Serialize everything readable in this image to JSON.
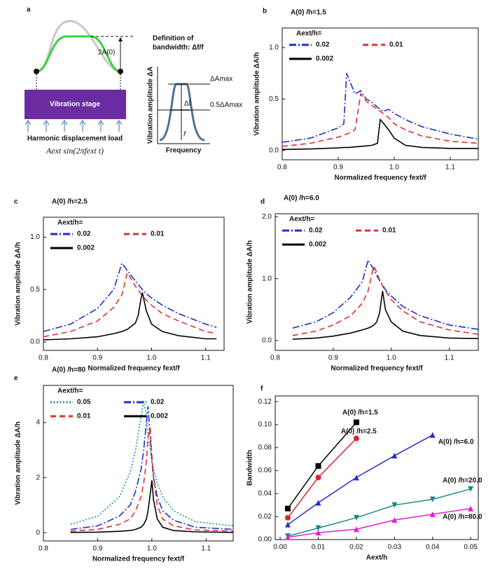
{
  "diagram": {
    "panel_label": "a",
    "amplitude_label": "2A(0)",
    "stage": "Vibration stage",
    "load": "Harmonic displacement load",
    "formula": "Aext sin(2πfext t)",
    "definition_line1": "Definition of",
    "definition_line2": "bandwidth: Δf/f",
    "ylabel": "Vibration amplitude ΔA",
    "xlabel": "Frequency",
    "max_label": "ΔAmax",
    "half_label": "0.5ΔAmax",
    "width_label": "Δf",
    "center_label": "f"
  },
  "chart_data": [
    {
      "type": "line",
      "panel_label": "b",
      "title": "A(0) /h=1.5",
      "xlabel": "Normalized frequency fext/f",
      "ylabel": "Vibration amplitude ΔA/h",
      "legend_title": "Aext/h=",
      "xlim": [
        0.8,
        1.15
      ],
      "ylim": [
        -0.09,
        1.19
      ],
      "xticks": [
        0.8,
        0.9,
        {
          "value": 1.0,
          "label": "1.0"
        },
        1.1
      ],
      "yticks": [
        {
          "value": 0,
          "label": "0.0"
        },
        0.5,
        {
          "value": 1.0,
          "label": "1.0"
        }
      ],
      "x": [
        0.8,
        0.85,
        0.9,
        0.91,
        0.915,
        0.92,
        0.93,
        0.94,
        0.95,
        0.96,
        0.97,
        0.975,
        0.98,
        0.99,
        1.0,
        1.02,
        1.05,
        1.1,
        1.15
      ],
      "series": [
        {
          "name": "0.02",
          "color": "#1f2fc8",
          "line_style": "dashdot",
          "values": [
            0.08,
            0.12,
            0.22,
            0.26,
            0.75,
            0.68,
            0.55,
            0.58,
            0.5,
            0.47,
            0.42,
            0.4,
            0.38,
            0.4,
            0.36,
            0.3,
            0.23,
            0.16,
            0.11
          ]
        },
        {
          "name": "0.01",
          "color": "#e03030",
          "line_style": "dashed",
          "values": [
            0.04,
            0.07,
            0.13,
            0.15,
            0.16,
            0.17,
            0.2,
            0.55,
            0.48,
            0.44,
            0.4,
            0.38,
            0.36,
            0.32,
            0.26,
            0.2,
            0.14,
            0.09,
            0.07
          ]
        },
        {
          "name": "0.002",
          "color": "#000000",
          "line_style": "solid",
          "values": [
            0.01,
            0.015,
            0.025,
            0.03,
            0.03,
            0.03,
            0.035,
            0.04,
            0.045,
            0.05,
            0.07,
            0.3,
            0.27,
            0.2,
            0.12,
            0.05,
            0.03,
            0.02,
            0.02
          ]
        }
      ]
    },
    {
      "type": "line",
      "panel_label": "c",
      "title": "A(0) /h=2.5",
      "xlabel": "Normalized frequency fext/f",
      "ylabel": "Vibration amplitude ΔA/h",
      "legend_title": "Aext/h=",
      "xlim": [
        0.8,
        1.134
      ],
      "ylim": [
        -0.08,
        1.19
      ],
      "xticks": [
        0.8,
        0.9,
        {
          "value": 1.0,
          "label": "1.0"
        },
        1.1
      ],
      "yticks": [
        {
          "value": 0,
          "label": "0.0"
        },
        0.5,
        {
          "value": 1.0,
          "label": "1.0"
        }
      ],
      "x": [
        0.8,
        0.85,
        0.9,
        0.93,
        0.945,
        0.95,
        0.955,
        0.96,
        0.97,
        0.975,
        0.98,
        0.983,
        0.99,
        1.0,
        1.02,
        1.05,
        1.1,
        1.12
      ],
      "series": [
        {
          "name": "0.02",
          "color": "#1f2fc8",
          "line_style": "dashdot",
          "values": [
            0.1,
            0.17,
            0.32,
            0.5,
            0.75,
            0.72,
            0.68,
            0.65,
            0.58,
            0.55,
            0.52,
            0.5,
            0.46,
            0.42,
            0.35,
            0.27,
            0.17,
            0.14
          ]
        },
        {
          "name": "0.01",
          "color": "#e03030",
          "line_style": "dashed",
          "values": [
            0.05,
            0.1,
            0.2,
            0.33,
            0.45,
            0.55,
            0.66,
            0.62,
            0.53,
            0.5,
            0.46,
            0.44,
            0.4,
            0.35,
            0.27,
            0.2,
            0.1,
            0.08
          ]
        },
        {
          "name": "0.002",
          "color": "#000000",
          "line_style": "solid",
          "values": [
            0.02,
            0.03,
            0.05,
            0.08,
            0.1,
            0.11,
            0.12,
            0.14,
            0.18,
            0.25,
            0.4,
            0.47,
            0.3,
            0.17,
            0.1,
            0.06,
            0.03,
            0.03
          ]
        }
      ]
    },
    {
      "type": "line",
      "panel_label": "d",
      "title": "A(0) /h=6.0",
      "xlabel": "Normalized frequency fext/f",
      "ylabel": "Vibration amplitude ΔA/h",
      "legend_title": "Aext/h=",
      "xlim": [
        0.8,
        1.15
      ],
      "ylim": [
        -0.16,
        2.05
      ],
      "xticks": [
        0.8,
        0.9,
        {
          "value": 1.0,
          "label": "1.0"
        },
        1.1
      ],
      "yticks": [
        {
          "value": 0,
          "label": "0.0"
        },
        {
          "value": 1.0,
          "label": "1.0"
        },
        {
          "value": 2.0,
          "label": "2.0"
        }
      ],
      "x": [
        0.83,
        0.87,
        0.9,
        0.93,
        0.95,
        0.96,
        0.965,
        0.97,
        0.975,
        0.98,
        0.985,
        0.99,
        1.0,
        1.02,
        1.05,
        1.1,
        1.15
      ],
      "series": [
        {
          "name": "0.02",
          "color": "#1f2fc8",
          "line_style": "dashdot",
          "values": [
            0.2,
            0.3,
            0.45,
            0.7,
            0.95,
            1.3,
            1.22,
            1.15,
            1.05,
            0.97,
            0.9,
            0.82,
            0.72,
            0.55,
            0.4,
            0.25,
            0.18
          ]
        },
        {
          "name": "0.01",
          "color": "#e03030",
          "line_style": "dashed",
          "values": [
            0.08,
            0.15,
            0.25,
            0.4,
            0.6,
            0.8,
            1.0,
            1.2,
            1.1,
            0.98,
            0.88,
            0.8,
            0.66,
            0.48,
            0.3,
            0.17,
            0.1
          ]
        },
        {
          "name": "0.002",
          "color": "#000000",
          "line_style": "solid",
          "values": [
            0.02,
            0.04,
            0.07,
            0.12,
            0.17,
            0.2,
            0.22,
            0.25,
            0.3,
            0.45,
            0.8,
            0.5,
            0.3,
            0.15,
            0.08,
            0.04,
            0.03
          ]
        }
      ]
    },
    {
      "type": "line",
      "panel_label": "e",
      "title": "A(0) /h=80",
      "xlabel": "Normalized frequency fext/f",
      "ylabel": "Vibration amplitude ΔA/h",
      "legend_title": "Aext/h=",
      "xlim": [
        0.8,
        1.15
      ],
      "ylim": [
        -0.3,
        5.35
      ],
      "xticks": [
        0.8,
        0.9,
        {
          "value": 1.0,
          "label": "1.0"
        },
        1.1
      ],
      "yticks": [
        0,
        2,
        4
      ],
      "x": [
        0.85,
        0.9,
        0.94,
        0.96,
        0.97,
        0.98,
        0.985,
        0.99,
        0.993,
        0.997,
        1.0,
        1.003,
        1.01,
        1.02,
        1.04,
        1.08,
        1.15
      ],
      "series": [
        {
          "name": "0.05",
          "color": "#1a9a8a",
          "line_style": "dotted",
          "values": [
            0.3,
            0.6,
            1.3,
            2.2,
            3.0,
            4.2,
            4.8,
            4.3,
            3.6,
            3.0,
            2.6,
            2.3,
            1.8,
            1.3,
            0.8,
            0.4,
            0.25
          ]
        },
        {
          "name": "0.02",
          "color": "#1f2fc8",
          "line_style": "dashdot",
          "values": [
            0.12,
            0.25,
            0.6,
            1.0,
            1.5,
            2.3,
            3.0,
            4.0,
            4.6,
            3.5,
            2.6,
            2.0,
            1.3,
            0.8,
            0.45,
            0.2,
            0.12
          ]
        },
        {
          "name": "0.01",
          "color": "#e03030",
          "line_style": "dashed",
          "values": [
            0.06,
            0.12,
            0.3,
            0.5,
            0.8,
            1.3,
            1.8,
            2.6,
            3.5,
            3.8,
            2.8,
            2.0,
            1.0,
            0.5,
            0.25,
            0.1,
            0.06
          ]
        },
        {
          "name": "0.002",
          "color": "#000000",
          "line_style": "solid",
          "values": [
            0.01,
            0.02,
            0.05,
            0.08,
            0.12,
            0.2,
            0.3,
            0.5,
            0.8,
            1.4,
            1.9,
            1.2,
            0.5,
            0.2,
            0.08,
            0.03,
            0.01
          ]
        }
      ]
    },
    {
      "type": "line",
      "panel_label": "f",
      "xlabel": "Aext/h",
      "ylabel": "Bandwidth",
      "xlim": [
        -0.0013,
        0.052
      ],
      "ylim": [
        0,
        0.125
      ],
      "xticks": [
        {
          "value": 0,
          "label": "0.00"
        },
        {
          "value": 0.01,
          "label": "0.01"
        },
        {
          "value": 0.02,
          "label": "0.02"
        },
        {
          "value": 0.03,
          "label": "0.03"
        },
        {
          "value": 0.04,
          "label": "0.04"
        },
        {
          "value": 0.05,
          "label": "0.05"
        }
      ],
      "yticks": [
        {
          "value": 0,
          "label": "0.00"
        },
        {
          "value": 0.02,
          "label": "0.02"
        },
        {
          "value": 0.04,
          "label": "0.04"
        },
        {
          "value": 0.06,
          "label": "0.06"
        },
        {
          "value": 0.08,
          "label": "0.08"
        },
        {
          "value": 0.1,
          "label": "0.10"
        },
        {
          "value": 0.12,
          "label": "0.12"
        }
      ],
      "x": [
        0.002,
        0.01,
        0.02,
        0.03,
        0.04,
        0.05
      ],
      "series": [
        {
          "name": "A(0) /h=1.5",
          "color": "#000000",
          "marker": "square",
          "line_style": "solid",
          "values": [
            0.027,
            0.064,
            0.102,
            null,
            null,
            null
          ]
        },
        {
          "name": "A(0) /h=2.5",
          "color": "#e02030",
          "marker": "circle",
          "line_style": "solid",
          "values": [
            0.019,
            0.054,
            0.088,
            null,
            null,
            null
          ]
        },
        {
          "name": "A(0) /h=6.0",
          "color": "#2a2ad0",
          "marker": "triangle-up",
          "line_style": "solid",
          "values": [
            0.013,
            0.032,
            0.054,
            0.073,
            0.091,
            null
          ]
        },
        {
          "name": "A(0) /h=20.0",
          "color": "#1a8a80",
          "marker": "triangle-down",
          "line_style": "solid",
          "values": [
            0.003,
            0.01,
            0.019,
            0.03,
            0.035,
            0.044
          ]
        },
        {
          "name": "A(0) /h=80.0",
          "color": "#e020d0",
          "marker": "triangle-up",
          "line_style": "solid",
          "values": [
            0.002,
            0.006,
            0.009,
            0.017,
            0.022,
            0.027
          ]
        }
      ]
    }
  ]
}
